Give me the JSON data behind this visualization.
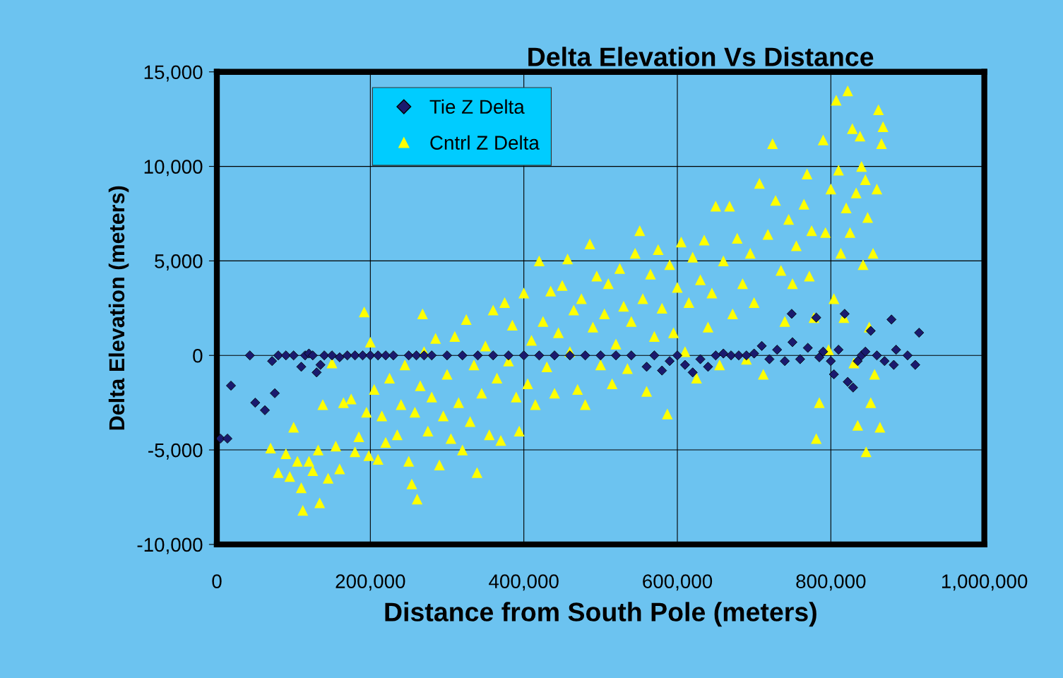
{
  "chart_data": {
    "type": "scatter",
    "title": "Delta Elevation Vs Distance",
    "xlabel": "Distance from South Pole (meters)",
    "ylabel": "Delta Elevation (meters)",
    "xlim": [
      0,
      1000000
    ],
    "ylim": [
      -10000,
      15000
    ],
    "xticks": [
      {
        "value": 0,
        "label": "0"
      },
      {
        "value": 200000,
        "label": "200,000"
      },
      {
        "value": 400000,
        "label": "400,000"
      },
      {
        "value": 600000,
        "label": "600,000"
      },
      {
        "value": 800000,
        "label": "800,000"
      },
      {
        "value": 1000000,
        "label": "1,000,000"
      }
    ],
    "yticks": [
      {
        "value": -10000,
        "label": "-10,000"
      },
      {
        "value": -5000,
        "label": "-5,000"
      },
      {
        "value": 0,
        "label": "0"
      },
      {
        "value": 5000,
        "label": "5,000"
      },
      {
        "value": 10000,
        "label": "10,000"
      },
      {
        "value": 15000,
        "label": "15,000"
      }
    ],
    "grid": true,
    "legend": "top left",
    "series": [
      {
        "name": "Cntrl Z Delta",
        "color": "#ffff00",
        "marker": "triangle",
        "x": [
          70000,
          80000,
          90000,
          95000,
          100000,
          105000,
          110000,
          112000,
          120000,
          125000,
          132000,
          134000,
          138000,
          145000,
          150000,
          155000,
          160000,
          165000,
          175000,
          180000,
          185000,
          192000,
          195000,
          198000,
          200000,
          205000,
          210000,
          215000,
          220000,
          225000,
          235000,
          240000,
          245000,
          250000,
          254000,
          258000,
          261000,
          265000,
          268000,
          270000,
          275000,
          280000,
          285000,
          290000,
          295000,
          300000,
          305000,
          310000,
          315000,
          320000,
          325000,
          330000,
          335000,
          339000,
          345000,
          350000,
          355000,
          360000,
          365000,
          370000,
          375000,
          380000,
          385000,
          390000,
          394000,
          400000,
          405000,
          410000,
          415000,
          420000,
          425000,
          430000,
          435000,
          440000,
          445000,
          450000,
          457000,
          460000,
          465000,
          470000,
          475000,
          480000,
          486000,
          490000,
          495000,
          500000,
          505000,
          510000,
          515000,
          520000,
          525000,
          530000,
          535000,
          540000,
          545000,
          551000,
          555000,
          560000,
          565000,
          570000,
          575000,
          580000,
          587000,
          590000,
          595000,
          600000,
          605000,
          610000,
          615000,
          620000,
          625000,
          630000,
          635000,
          640000,
          645000,
          650000,
          655000,
          660000,
          668000,
          672000,
          678000,
          685000,
          690000,
          695000,
          700000,
          707000,
          712000,
          718000,
          724000,
          728000,
          735000,
          740000,
          745000,
          750000,
          755000,
          760000,
          765000,
          769000,
          772000,
          775000,
          778000,
          781000,
          785000,
          790000,
          793000,
          797000,
          800000,
          804000,
          807000,
          810000,
          813000,
          817000,
          820000,
          822000,
          825000,
          828000,
          830000,
          833000,
          835000,
          838000,
          840000,
          842000,
          845000,
          846000,
          848000,
          850000,
          852000,
          855000,
          857000,
          860000,
          862000,
          864000,
          866000,
          868000
        ],
        "values": [
          -4900,
          -6200,
          -5200,
          -6400,
          -3800,
          -5600,
          -7000,
          -8200,
          -5600,
          -6100,
          -5000,
          -7800,
          -2600,
          -6500,
          -400,
          -4800,
          -6000,
          -2500,
          -2300,
          -5100,
          -4300,
          2300,
          -3000,
          -5300,
          700,
          -1800,
          -5500,
          -3200,
          -4600,
          -1200,
          -4200,
          -2600,
          -500,
          -5600,
          -6800,
          -3000,
          -7600,
          -1600,
          2200,
          200,
          -4000,
          -2200,
          900,
          -5800,
          -3200,
          -1000,
          -4400,
          1000,
          -2500,
          -5000,
          1900,
          -3500,
          -500,
          -6200,
          -2000,
          500,
          -4200,
          2400,
          -1200,
          -4500,
          2800,
          -300,
          1600,
          -2200,
          -4000,
          3300,
          -1500,
          800,
          -2600,
          5000,
          1800,
          -600,
          3400,
          -2000,
          1200,
          3700,
          5100,
          200,
          2400,
          -1800,
          3000,
          -2600,
          5900,
          1500,
          4200,
          -500,
          2200,
          3800,
          -1500,
          600,
          4600,
          2600,
          -700,
          1800,
          5400,
          6600,
          3000,
          -1900,
          4300,
          1000,
          5600,
          2500,
          -3100,
          4800,
          1200,
          3600,
          6000,
          200,
          2800,
          5200,
          -1200,
          4000,
          6100,
          1500,
          3300,
          7900,
          -500,
          5000,
          7900,
          2200,
          6200,
          3800,
          -200,
          5400,
          2800,
          9100,
          -1000,
          6400,
          11200,
          8200,
          4500,
          1800,
          7200,
          3800,
          5800,
          null,
          8000,
          9600,
          4200,
          6600,
          2000,
          -4400,
          -2500,
          11400,
          6500,
          300,
          8800,
          3000,
          13500,
          9800,
          5400,
          2000,
          7800,
          14000,
          6500,
          12000,
          -400,
          8600,
          -3700,
          11600,
          10000,
          4800,
          9300,
          -5100,
          7300,
          1500,
          -2500,
          5400,
          -1000,
          8800,
          13000,
          -3800,
          11200,
          12100
        ]
      },
      {
        "name": "Tie Z Delta",
        "color": "#1a1a6e",
        "marker": "diamond",
        "x": [
          4600,
          13800,
          18400,
          43000,
          50000,
          62600,
          72000,
          75500,
          80000,
          90000,
          100000,
          110000,
          115000,
          120000,
          125000,
          130000,
          135000,
          140000,
          150000,
          160000,
          170000,
          180000,
          190000,
          200000,
          210000,
          220000,
          230000,
          250000,
          260000,
          270000,
          280000,
          300000,
          320000,
          340000,
          360000,
          380000,
          400000,
          420000,
          440000,
          460000,
          480000,
          500000,
          520000,
          540000,
          560000,
          570000,
          580000,
          590000,
          600000,
          610000,
          620000,
          630000,
          640000,
          650000,
          660000,
          670000,
          680000,
          690000,
          700000,
          710000,
          720000,
          730000,
          740000,
          749000,
          750000,
          760000,
          770000,
          781000,
          785000,
          790000,
          800000,
          804000,
          810000,
          818000,
          822000,
          829000,
          835000,
          840000,
          845000,
          852000,
          860000,
          870000,
          879000,
          882000,
          885000,
          900000,
          910000,
          915000
        ],
        "values": [
          -4400,
          -4400,
          -1600,
          0,
          -2500,
          -2900,
          -300,
          -2000,
          0,
          0,
          0,
          -600,
          0,
          100,
          0,
          -900,
          -500,
          0,
          0,
          -100,
          0,
          0,
          0,
          0,
          0,
          0,
          0,
          0,
          0,
          0,
          0,
          0,
          0,
          0,
          0,
          0,
          0,
          0,
          0,
          0,
          0,
          0,
          0,
          0,
          -600,
          0,
          -800,
          -300,
          0,
          -500,
          -900,
          -200,
          -600,
          0,
          100,
          0,
          0,
          0,
          100,
          500,
          -200,
          300,
          -300,
          2200,
          700,
          -200,
          400,
          2000,
          -100,
          200,
          -300,
          -1000,
          300,
          2200,
          -1400,
          -1700,
          -300,
          0,
          200,
          1300,
          0,
          -300,
          1900,
          -500,
          300,
          0,
          -500,
          1200
        ]
      }
    ]
  }
}
